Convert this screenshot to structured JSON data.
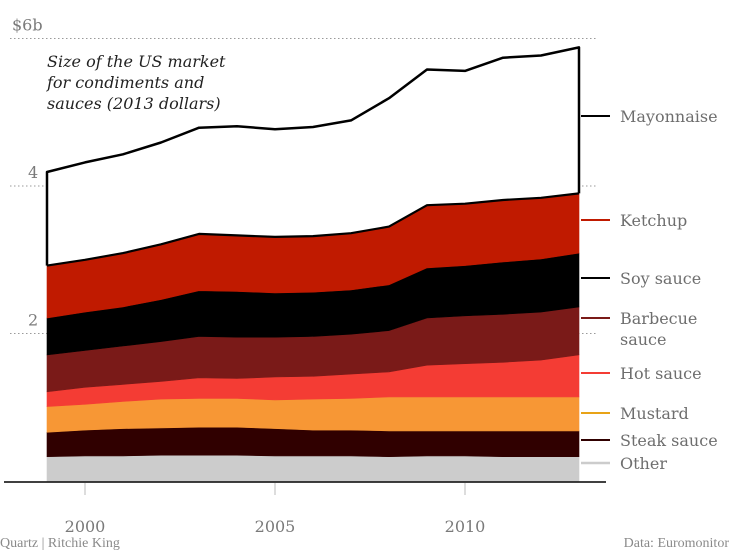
{
  "chart_data": {
    "type": "area",
    "stacked": true,
    "title": "Size of the US market for condiments and sauces (2013 dollars)",
    "title_lines": [
      "Size of the US market",
      "for condiments and",
      "sauces (2013 dollars)"
    ],
    "xlabel": "",
    "ylabel": "",
    "x": [
      1999,
      2000,
      2001,
      2002,
      2003,
      2004,
      2005,
      2006,
      2007,
      2008,
      2009,
      2010,
      2011,
      2012,
      2013
    ],
    "xlim": [
      1998,
      2014
    ],
    "ylim": [
      0,
      6
    ],
    "x_ticks": [
      {
        "value": 2000,
        "label": "2000"
      },
      {
        "value": 2005,
        "label": "2005"
      },
      {
        "value": 2010,
        "label": "2010"
      }
    ],
    "y_ticks": [
      {
        "value": 2,
        "label": "2"
      },
      {
        "value": 4,
        "label": "4"
      },
      {
        "value": 6,
        "label": "$6b"
      }
    ],
    "grid": "dotted horizontal at y ticks",
    "legend_position": "right, direct labels",
    "units": "billion US dollars (2013)",
    "series": [
      {
        "name": "Other",
        "label_lines": [
          "Other"
        ],
        "color": "#cccccc",
        "values": [
          0.33,
          0.34,
          0.34,
          0.35,
          0.35,
          0.35,
          0.34,
          0.34,
          0.34,
          0.33,
          0.34,
          0.34,
          0.33,
          0.33,
          0.33
        ]
      },
      {
        "name": "Steak sauce",
        "label_lines": [
          "Steak sauce"
        ],
        "color": "#300000",
        "values": [
          0.33,
          0.35,
          0.37,
          0.37,
          0.38,
          0.38,
          0.37,
          0.35,
          0.35,
          0.35,
          0.34,
          0.34,
          0.35,
          0.35,
          0.35
        ]
      },
      {
        "name": "Mustard",
        "label_lines": [
          "Mustard"
        ],
        "color": "#f79735",
        "line_color": "#e8a317",
        "values": [
          0.35,
          0.35,
          0.37,
          0.39,
          0.39,
          0.39,
          0.39,
          0.42,
          0.43,
          0.46,
          0.46,
          0.46,
          0.46,
          0.46,
          0.46
        ]
      },
      {
        "name": "Hot sauce",
        "label_lines": [
          "Hot sauce"
        ],
        "color": "#f43c34",
        "values": [
          0.2,
          0.23,
          0.23,
          0.24,
          0.28,
          0.27,
          0.31,
          0.31,
          0.33,
          0.34,
          0.43,
          0.45,
          0.47,
          0.5,
          0.57
        ]
      },
      {
        "name": "Barbecue sauce",
        "label_lines": [
          "Barbecue",
          "sauce"
        ],
        "color": "#7a1a18",
        "values": [
          0.5,
          0.5,
          0.52,
          0.54,
          0.56,
          0.56,
          0.54,
          0.54,
          0.54,
          0.56,
          0.64,
          0.65,
          0.65,
          0.65,
          0.65
        ]
      },
      {
        "name": "Soy sauce",
        "label_lines": [
          "Soy sauce"
        ],
        "color": "#000000",
        "values": [
          0.5,
          0.52,
          0.53,
          0.57,
          0.62,
          0.62,
          0.6,
          0.6,
          0.6,
          0.62,
          0.68,
          0.68,
          0.71,
          0.72,
          0.73
        ]
      },
      {
        "name": "Ketchup",
        "label_lines": [
          "Ketchup"
        ],
        "color": "#c01a00",
        "values": [
          0.71,
          0.71,
          0.73,
          0.75,
          0.77,
          0.76,
          0.76,
          0.76,
          0.77,
          0.79,
          0.85,
          0.84,
          0.84,
          0.83,
          0.81
        ]
      },
      {
        "name": "Mayonnaise",
        "label_lines": [
          "Mayonnaise"
        ],
        "color": "#ffffff",
        "stroke": "#000000",
        "values": [
          1.27,
          1.32,
          1.34,
          1.38,
          1.44,
          1.48,
          1.46,
          1.48,
          1.53,
          1.74,
          1.84,
          1.8,
          1.93,
          1.93,
          1.98
        ]
      }
    ]
  },
  "footer": {
    "credit": "Quartz | Ritchie King",
    "source": "Data: Euromonitor"
  }
}
